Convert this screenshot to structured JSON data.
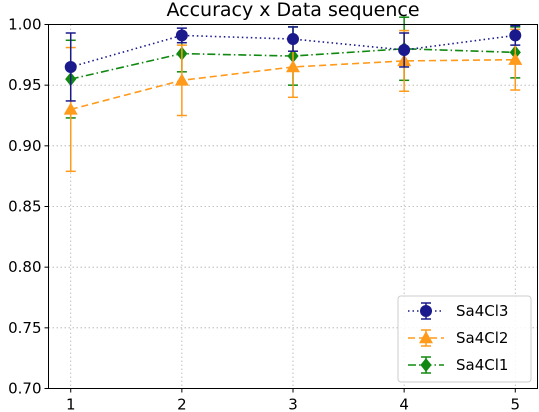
{
  "chart_data": {
    "type": "line",
    "title": "Accuracy x Data sequence",
    "xlabel": "",
    "ylabel": "",
    "x": [
      1,
      2,
      3,
      4,
      5
    ],
    "xlim": [
      0.8,
      5.2
    ],
    "ylim": [
      0.7,
      1.0
    ],
    "yticks": [
      "0.70",
      "0.75",
      "0.80",
      "0.85",
      "0.90",
      "0.95",
      "1.00"
    ],
    "xticks": [
      "1",
      "2",
      "3",
      "4",
      "5"
    ],
    "grid": true,
    "legend_position": "bottom-right",
    "series": [
      {
        "name": "Sa4Cl3",
        "color": "#1a1a8c",
        "marker": "circle",
        "linestyle": "dotted",
        "values": [
          0.965,
          0.991,
          0.988,
          0.979,
          0.991
        ],
        "errors": [
          0.028,
          0.006,
          0.01,
          0.014,
          0.008
        ]
      },
      {
        "name": "Sa4Cl2",
        "color": "#ff9a1a",
        "marker": "triangle",
        "linestyle": "dashed",
        "values": [
          0.93,
          0.954,
          0.965,
          0.97,
          0.971
        ],
        "errors": [
          0.051,
          0.029,
          0.025,
          0.025,
          0.025
        ]
      },
      {
        "name": "Sa4Cl1",
        "color": "#118811",
        "marker": "diamond",
        "linestyle": "dashdot",
        "values": [
          0.955,
          0.976,
          0.974,
          0.98,
          0.977
        ],
        "errors": [
          0.032,
          0.015,
          0.024,
          0.026,
          0.021
        ]
      }
    ]
  }
}
